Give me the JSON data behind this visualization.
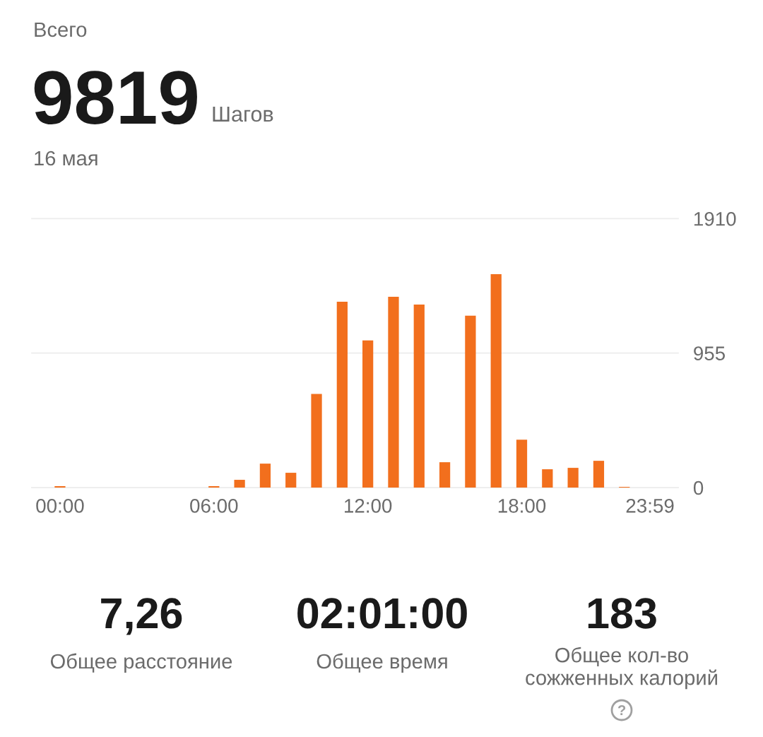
{
  "chart_data": {
    "type": "bar",
    "title": "Всего",
    "annotations": [
      "9819",
      "Шагов",
      "16 мая",
      "7,26",
      "Общее расстояние",
      "02:01:00",
      "Общее время",
      "183",
      "Общее кол-во\nсожженных калорий"
    ],
    "categories": [
      "00:00",
      null,
      null,
      null,
      null,
      null,
      "06:00",
      null,
      null,
      null,
      null,
      null,
      "12:00",
      null,
      null,
      null,
      null,
      null,
      "18:00",
      null,
      null,
      null,
      null,
      "23:59"
    ],
    "values": [
      10,
      null,
      null,
      null,
      null,
      null,
      10,
      55,
      170,
      105,
      665,
      1320,
      1045,
      1355,
      1300,
      180,
      1220,
      1515,
      340,
      130,
      140,
      190,
      5,
      null
    ],
    "color": "#f26f1d",
    "ylim": [
      0,
      1910
    ],
    "yticks": [
      0,
      955,
      1910
    ],
    "grid": "y"
  }
}
